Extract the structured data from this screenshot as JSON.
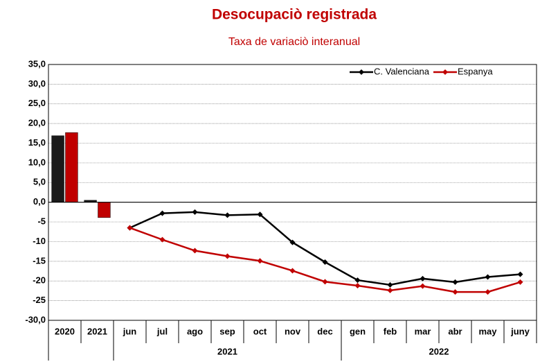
{
  "chart_data": {
    "type": "combo",
    "title": "Desocupaciò registrada",
    "subtitle": "Taxa de variaciò interanual",
    "categories": [
      "2020",
      "2021",
      "jun",
      "jul",
      "ago",
      "sep",
      "oct",
      "nov",
      "dec",
      "gen",
      "feb",
      "mar",
      "abr",
      "may",
      "juny"
    ],
    "groups": [
      {
        "label": null,
        "span": 2
      },
      {
        "label": "2021",
        "span": 7
      },
      {
        "label": "2022",
        "span": 6
      }
    ],
    "series": [
      {
        "name": "C. Valenciana",
        "color": "#000000",
        "bar_color": "#1a1a1a",
        "bars": [
          16.9,
          0.5,
          null,
          null,
          null,
          null,
          null,
          null,
          null,
          null,
          null,
          null,
          null,
          null,
          null
        ],
        "values": [
          null,
          null,
          -6.5,
          -2.8,
          -2.5,
          -3.3,
          -3.1,
          -10.2,
          -15.2,
          -19.8,
          -21.0,
          -19.4,
          -20.3,
          -19.0,
          -18.3
        ]
      },
      {
        "name": "Espanya",
        "color": "#c00000",
        "bar_color": "#c00000",
        "bars": [
          17.7,
          -3.9,
          null,
          null,
          null,
          null,
          null,
          null,
          null,
          null,
          null,
          null,
          null,
          null,
          null
        ],
        "values": [
          null,
          null,
          -6.5,
          -9.5,
          -12.3,
          -13.7,
          -14.9,
          -17.4,
          -20.2,
          -21.2,
          -22.4,
          -21.3,
          -22.8,
          -22.8,
          -20.3
        ]
      }
    ],
    "ylim": [
      -30,
      35
    ],
    "yticks": [
      {
        "value": -30,
        "label": "-30,0"
      },
      {
        "value": -25,
        "label": "-25"
      },
      {
        "value": -20,
        "label": "-20"
      },
      {
        "value": -15,
        "label": "-15"
      },
      {
        "value": -10,
        "label": "-10"
      },
      {
        "value": -5,
        "label": "-5"
      },
      {
        "value": 0,
        "label": "0,0"
      },
      {
        "value": 5,
        "label": "5,0"
      },
      {
        "value": 10,
        "label": "10,0"
      },
      {
        "value": 15,
        "label": "15,0"
      },
      {
        "value": 20,
        "label": "20,0"
      },
      {
        "value": 25,
        "label": "25,0"
      },
      {
        "value": 30,
        "label": "30,0"
      },
      {
        "value": 35,
        "label": "35,0"
      }
    ],
    "grid": true,
    "legend": "top-right"
  }
}
